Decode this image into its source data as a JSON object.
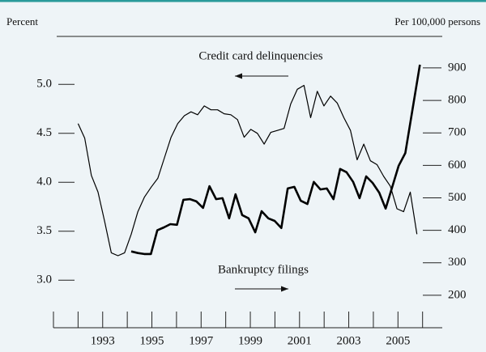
{
  "chart_data": {
    "type": "line",
    "left_axis_label": "Percent",
    "right_axis_label": "Per 100,000 persons",
    "annotations": [
      {
        "text": "Credit card delinquencies",
        "arrow": "left"
      },
      {
        "text": "Bankruptcy filings",
        "arrow": "right"
      }
    ],
    "xlim": [
      1991,
      2006.8
    ],
    "xticks": [
      1993,
      1995,
      1997,
      1999,
      2001,
      2003,
      2005
    ],
    "xminor_ticks": [
      1991,
      1992,
      1994,
      1996,
      1998,
      2000,
      2002,
      2004,
      2006
    ],
    "ylim": [
      2.68,
      5.49
    ],
    "yticks": [
      {
        "value": 3.0,
        "label": "3.0"
      },
      3.5,
      {
        "value": 4.0,
        "label": "4.0"
      },
      4.5,
      {
        "value": 5.0,
        "label": "5.0"
      }
    ],
    "y2lim": [
      150,
      997
    ],
    "y2ticks": [
      200,
      300,
      400,
      500,
      600,
      700,
      800,
      900
    ],
    "series": [
      {
        "name": "Credit card delinquencies",
        "color": "#000000",
        "width": 1.2,
        "axis": "y",
        "x": [
          1992.0,
          1992.27,
          1992.54,
          1992.81,
          1993.08,
          1993.35,
          1993.62,
          1993.89,
          1994.16,
          1994.43,
          1994.7,
          1994.97,
          1995.24,
          1995.51,
          1995.78,
          1996.05,
          1996.32,
          1996.59,
          1996.86,
          1997.13,
          1997.4,
          1997.67,
          1997.94,
          1998.21,
          1998.48,
          1998.75,
          1999.02,
          1999.29,
          1999.56,
          1999.83,
          2000.1,
          2000.37,
          2000.64,
          2000.91,
          2001.18,
          2001.45,
          2001.72,
          2001.99,
          2002.26,
          2002.53,
          2002.8,
          2003.07,
          2003.34,
          2003.61,
          2003.88,
          2004.15,
          2004.42,
          2004.69,
          2004.96,
          2005.23,
          2005.5,
          2005.77
        ],
        "values": [
          4.6,
          4.45,
          4.07,
          3.9,
          3.6,
          3.28,
          3.25,
          3.28,
          3.47,
          3.7,
          3.85,
          3.95,
          4.04,
          4.25,
          4.46,
          4.6,
          4.68,
          4.72,
          4.69,
          4.78,
          4.74,
          4.74,
          4.7,
          4.69,
          4.64,
          4.46,
          4.54,
          4.5,
          4.39,
          4.51,
          4.53,
          4.55,
          4.8,
          4.95,
          4.99,
          4.66,
          4.93,
          4.78,
          4.88,
          4.81,
          4.66,
          4.53,
          4.23,
          4.39,
          4.22,
          4.18,
          4.06,
          3.96,
          3.73,
          3.7,
          3.9,
          3.47
        ]
      },
      {
        "name": "Bankruptcy filings",
        "color": "#000000",
        "width": 2.6,
        "axis": "y2",
        "x": [
          1994.16,
          1994.43,
          1994.69,
          1994.96,
          1995.22,
          1995.49,
          1995.75,
          1996.02,
          1996.28,
          1996.55,
          1996.81,
          1997.08,
          1997.34,
          1997.61,
          1997.87,
          1998.14,
          1998.4,
          1998.67,
          1998.93,
          1999.2,
          1999.46,
          1999.73,
          1999.99,
          2000.26,
          2000.52,
          2000.79,
          2001.05,
          2001.32,
          2001.58,
          2001.85,
          2002.11,
          2002.38,
          2002.65,
          2002.91,
          2003.18,
          2003.44,
          2003.71,
          2003.97,
          2004.24,
          2004.5,
          2004.77,
          2005.03,
          2005.3,
          2005.89
        ],
        "values": [
          335,
          330,
          327,
          327,
          400,
          409,
          419,
          417,
          494,
          496,
          489,
          469,
          536,
          496,
          499,
          437,
          511,
          447,
          437,
          394,
          459,
          437,
          429,
          407,
          529,
          534,
          491,
          481,
          549,
          526,
          529,
          496,
          589,
          579,
          549,
          499,
          566,
          546,
          516,
          467,
          534,
          599,
          638,
          910
        ]
      }
    ]
  }
}
